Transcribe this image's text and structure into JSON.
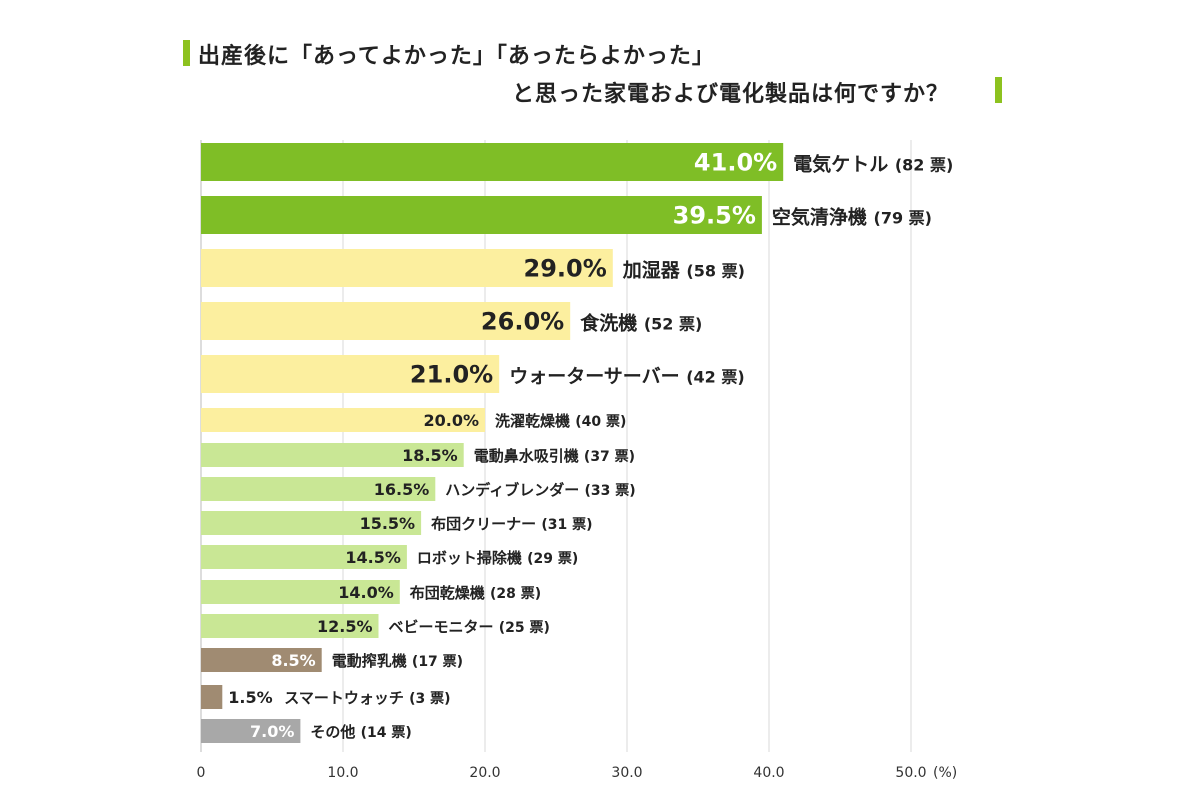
{
  "title": {
    "line1": "出産後に「あってよかった」「あったらよかった」",
    "line2": "と思った家電および電化製品は何ですか？"
  },
  "chart_data": {
    "type": "bar",
    "orientation": "horizontal",
    "categories": [
      "電気ケトル",
      "空気清浄機",
      "加湿器",
      "食洗機",
      "ウォーターサーバー",
      "洗濯乾燥機",
      "電動鼻水吸引機",
      "ハンディブレンダー",
      "布団クリーナー",
      "ロボット掃除機",
      "布団乾燥機",
      "ベビーモニター",
      "電動搾乳機",
      "スマートウォッチ",
      "その他"
    ],
    "values": [
      41.0,
      39.5,
      29.0,
      26.0,
      21.0,
      20.0,
      18.5,
      16.5,
      15.5,
      14.5,
      14.0,
      12.5,
      8.5,
      1.5,
      7.0
    ],
    "value_labels": [
      "41.0%",
      "39.5%",
      "29.0%",
      "26.0%",
      "21.0%",
      "20.0%",
      "18.5%",
      "16.5%",
      "15.5%",
      "14.5%",
      "14.0%",
      "12.5%",
      "8.5%",
      "1.5%",
      "7.0%"
    ],
    "votes": [
      "(82 票)",
      "(79 票)",
      "(58 票)",
      "(52 票)",
      "(42 票)",
      "(40 票)",
      "(37 票)",
      "(33 票)",
      "(31 票)",
      "(29 票)",
      "(28 票)",
      "(25 票)",
      "(17 票)",
      "(3 票)",
      "(14 票)"
    ],
    "colors": [
      "#7fbe26",
      "#7fbe26",
      "#fcef9f",
      "#fcef9f",
      "#fcef9f",
      "#fcef9f",
      "#c9e795",
      "#c9e795",
      "#c9e795",
      "#c9e795",
      "#c9e795",
      "#c9e795",
      "#a08b72",
      "#a08b72",
      "#a8a8a8"
    ],
    "label_colors": [
      "#ffffff",
      "#ffffff",
      "#222222",
      "#222222",
      "#222222",
      "#222222",
      "#222222",
      "#222222",
      "#222222",
      "#222222",
      "#222222",
      "#222222",
      "#ffffff",
      "#222222",
      "#ffffff"
    ],
    "xlim": [
      0,
      50
    ],
    "xticks": [
      "0",
      "10.0",
      "20.0",
      "30.0",
      "40.0",
      "50.0"
    ],
    "x_unit": "(%)",
    "grid": true
  }
}
